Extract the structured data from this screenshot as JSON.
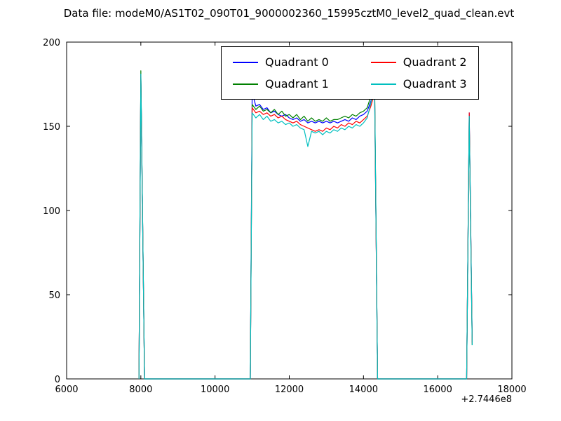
{
  "chart_data": {
    "type": "line",
    "title": "Data file: modeM0/AS1T02_090T01_9000002360_15995cztM0_level2_quad_clean.evt",
    "xlabel": "",
    "ylabel": "",
    "x_offset_label": "+2.7446e8",
    "xlim": [
      6000,
      18000
    ],
    "ylim": [
      0,
      200
    ],
    "x_ticks": [
      6000,
      8000,
      10000,
      12000,
      14000,
      16000,
      18000
    ],
    "y_ticks": [
      0,
      50,
      100,
      150,
      200
    ],
    "grid": false,
    "legend_position": "upper center",
    "legend_columns": 2,
    "x": [
      7950,
      8000,
      8100,
      9000,
      10000,
      10850,
      10950,
      11000,
      11100,
      11200,
      11300,
      11400,
      11500,
      11600,
      11700,
      11800,
      11900,
      12000,
      12100,
      12200,
      12300,
      12400,
      12500,
      12600,
      12700,
      12800,
      12900,
      13000,
      13100,
      13200,
      13300,
      13400,
      13500,
      13600,
      13700,
      13800,
      13900,
      14000,
      14100,
      14200,
      14300,
      14380,
      15000,
      16000,
      16780,
      16850,
      16930
    ],
    "series": [
      {
        "name": "Quadrant 0",
        "color": "#0000ff",
        "values": [
          0,
          181,
          0,
          0,
          0,
          0,
          0,
          170,
          162,
          163,
          160,
          161,
          158,
          159,
          157,
          156,
          157,
          155,
          154,
          155,
          153,
          154,
          152,
          153,
          152,
          153,
          152,
          153,
          152,
          153,
          152,
          153,
          154,
          153,
          155,
          154,
          156,
          157,
          159,
          165,
          172,
          0,
          0,
          0,
          0,
          158,
          22
        ]
      },
      {
        "name": "Quadrant 1",
        "color": "#008000",
        "values": [
          0,
          183,
          0,
          0,
          0,
          0,
          0,
          163,
          160,
          162,
          159,
          160,
          158,
          160,
          157,
          159,
          156,
          157,
          155,
          157,
          154,
          156,
          153,
          155,
          153,
          154,
          153,
          155,
          153,
          154,
          154,
          155,
          156,
          155,
          157,
          156,
          158,
          159,
          161,
          168,
          176,
          0,
          0,
          0,
          0,
          155,
          20
        ]
      },
      {
        "name": "Quadrant 2",
        "color": "#ff0000",
        "values": [
          0,
          180,
          0,
          0,
          0,
          0,
          0,
          161,
          158,
          159,
          157,
          158,
          156,
          157,
          155,
          156,
          154,
          153,
          152,
          153,
          151,
          150,
          149,
          148,
          147,
          148,
          147,
          149,
          148,
          150,
          149,
          151,
          150,
          152,
          151,
          153,
          152,
          154,
          156,
          162,
          170,
          0,
          0,
          0,
          0,
          158,
          21
        ]
      },
      {
        "name": "Quadrant 3",
        "color": "#00bfbf",
        "values": [
          0,
          181,
          0,
          0,
          0,
          0,
          0,
          158,
          155,
          157,
          154,
          156,
          153,
          154,
          152,
          153,
          151,
          152,
          150,
          151,
          149,
          148,
          138,
          147,
          146,
          147,
          145,
          147,
          146,
          148,
          147,
          149,
          148,
          150,
          149,
          151,
          150,
          152,
          155,
          164,
          174,
          0,
          0,
          0,
          0,
          156,
          20
        ]
      }
    ]
  }
}
